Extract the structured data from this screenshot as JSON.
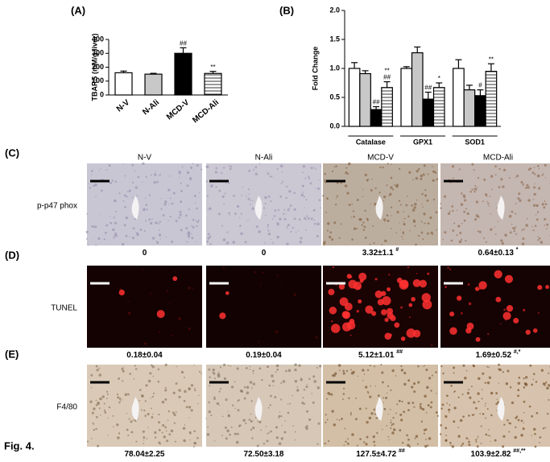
{
  "chart_data": [
    {
      "type": "bar",
      "label": "(A)",
      "y_label": "TBARS (mM/g liver)",
      "categories": [
        "N-V",
        "N-Ali",
        "MCD-V",
        "MCD-Ali"
      ],
      "values": [
        160,
        150,
        300,
        155
      ],
      "errors": [
        12,
        6,
        40,
        15
      ],
      "colors": [
        "#ffffff",
        "#c8c8c8",
        "#000000",
        "#ffffff"
      ],
      "hatch": [
        false,
        false,
        false,
        true
      ],
      "annotations": [
        null,
        null,
        [
          "##"
        ],
        [
          "**"
        ]
      ],
      "ylim": [
        0,
        400
      ],
      "yticks": [
        0,
        100,
        200,
        300,
        400
      ]
    },
    {
      "type": "bar",
      "label": "(B)",
      "y_label": "Fold Change",
      "categories": [
        "Catalase",
        "GPX1",
        "SOD1"
      ],
      "series": [
        {
          "color": "#ffffff",
          "hatch": false,
          "values": [
            1.0,
            1.0,
            1.0
          ],
          "errors": [
            0.1,
            0.03,
            0.15
          ],
          "annotations": [
            null,
            null,
            null
          ]
        },
        {
          "color": "#c8c8c8",
          "hatch": false,
          "values": [
            0.91,
            1.27,
            0.63
          ],
          "errors": [
            0.05,
            0.1,
            0.08
          ],
          "annotations": [
            null,
            null,
            null
          ]
        },
        {
          "color": "#000000",
          "hatch": false,
          "values": [
            0.29,
            0.47,
            0.53
          ],
          "errors": [
            0.05,
            0.12,
            0.1
          ],
          "annotations": [
            [
              "##"
            ],
            [
              "##"
            ],
            [
              "#"
            ]
          ]
        },
        {
          "color": "#ffffff",
          "hatch": true,
          "values": [
            0.67,
            0.67,
            0.95
          ],
          "errors": [
            0.1,
            0.08,
            0.13
          ],
          "annotations": [
            [
              "**",
              "##"
            ],
            [
              "*"
            ],
            [
              "**"
            ]
          ]
        }
      ],
      "ylim": [
        0,
        2
      ],
      "yticks": [
        {
          "value": 0,
          "label": "0.0"
        },
        0.5,
        {
          "value": 1,
          "label": "1.0"
        },
        1.5,
        {
          "value": 2,
          "label": "2.0"
        }
      ]
    }
  ],
  "columns": [
    "N-V",
    "N-Ali",
    "MCD-V",
    "MCD-Ali"
  ],
  "panels": [
    {
      "letter": "(C)",
      "row_label": "p-p47 phox",
      "quant": [
        {
          "text": "0"
        },
        {
          "text": "0"
        },
        {
          "text": "3.32±1.1",
          "sup": "#"
        },
        {
          "text": "0.64±0.13",
          "sup": "*"
        }
      ]
    },
    {
      "letter": "(D)",
      "row_label": "TUNEL",
      "quant": [
        {
          "text": "0.18±0.04"
        },
        {
          "text": "0.19±0.04"
        },
        {
          "text": "5.12±1.01",
          "sup": "##"
        },
        {
          "text": "1.69±0.52",
          "sup": "#,*"
        }
      ]
    },
    {
      "letter": "(E)",
      "row_label": "F4/80",
      "quant": [
        {
          "text": "78.04±2.25"
        },
        {
          "text": "72.50±3.18"
        },
        {
          "text": "127.5±4.72",
          "sup": "##"
        },
        {
          "text": "103.9±2.82",
          "sup": "##,**"
        }
      ]
    }
  ],
  "figure_label": "Fig. 4."
}
